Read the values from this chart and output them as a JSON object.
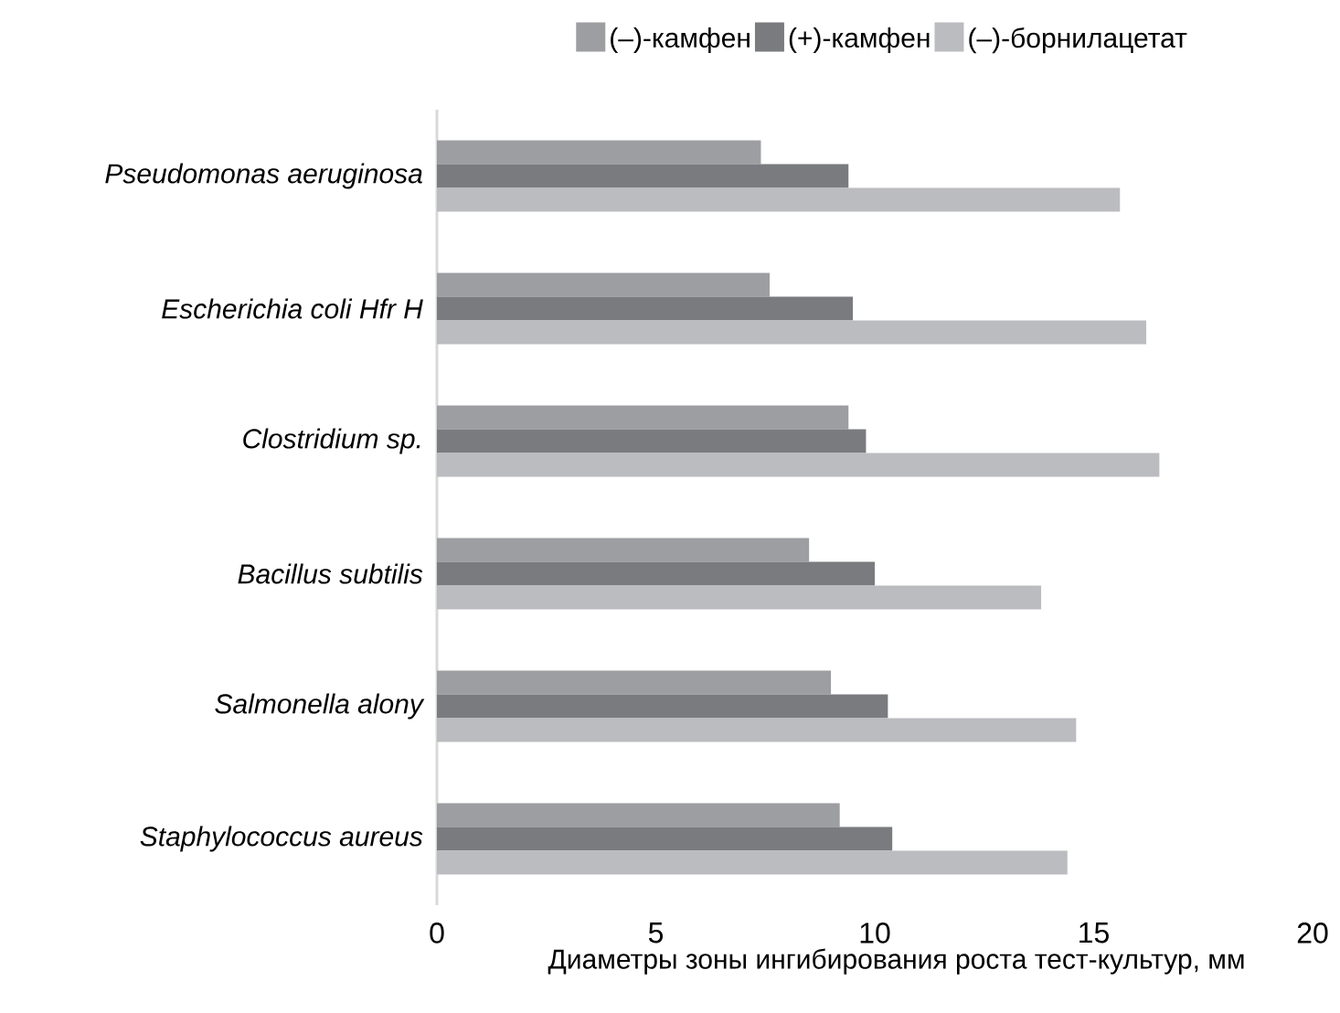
{
  "chart_data": {
    "type": "bar",
    "orientation": "horizontal",
    "xlabel": "Диаметры зоны ингибирования роста тест-культур, мм",
    "categories": [
      "Pseudomonas aeruginosa",
      "Escherichia coli Hfr H",
      "Clostridium sp.",
      "Bacillus subtilis",
      "Salmonella alony",
      "Staphylococcus aureus"
    ],
    "series": [
      {
        "name": "(–)-камфен",
        "color": "#9d9ea2",
        "values": [
          7.4,
          7.6,
          9.4,
          8.5,
          9.0,
          9.2
        ]
      },
      {
        "name": "(+)-камфен",
        "color": "#7a7b7f",
        "values": [
          9.4,
          9.5,
          9.8,
          10.0,
          10.3,
          10.4
        ]
      },
      {
        "name": "(–)-борнилацетат",
        "color": "#bbbcc0",
        "values": [
          15.6,
          16.2,
          16.5,
          13.8,
          14.6,
          14.4
        ]
      }
    ],
    "xlim": [
      0,
      20
    ],
    "xticks": [
      0,
      5,
      10,
      15,
      20
    ],
    "legend": "top",
    "grid": false
  }
}
